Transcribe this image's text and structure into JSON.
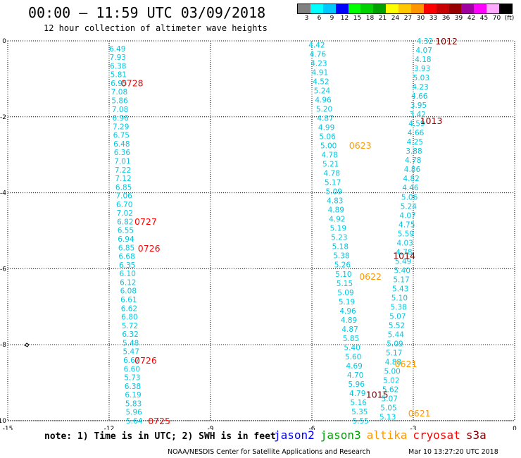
{
  "header": {
    "title": "00:00 – 11:59 UTC 03/09/2018",
    "subtitle": "12 hour collection of altimeter wave heights"
  },
  "colorbar": {
    "colors": [
      "#808080",
      "#00ffff",
      "#00c8ff",
      "#0000ff",
      "#00ff00",
      "#00d200",
      "#00a000",
      "#ffff00",
      "#ffc800",
      "#ff9600",
      "#ff0000",
      "#c80000",
      "#960000",
      "#a000a0",
      "#ff00ff",
      "#ffaaff",
      "#000000"
    ],
    "labels": [
      "3",
      "6",
      "9",
      "12",
      "15",
      "18",
      "21",
      "24",
      "27",
      "30",
      "33",
      "36",
      "39",
      "42",
      "45",
      "70",
      "(ft)"
    ]
  },
  "chart_data": {
    "type": "scatter",
    "xlim": [
      -15,
      0
    ],
    "ylim": [
      -10,
      0
    ],
    "x_ticks": [
      "-15",
      "-12",
      "-9",
      "-6",
      "-3",
      "0"
    ],
    "y_ticks": [
      "0",
      "-2",
      "-4",
      "-6",
      "-8",
      "-10"
    ],
    "grid": true,
    "point_color": "#00c8e0",
    "track1": {
      "x_start": -12.0,
      "x_end": -11.5,
      "y_start": -0.2,
      "y_end": -10.0,
      "values": [
        "6.49",
        "7.93",
        "6.38",
        "5.81",
        "6.95",
        "7.08",
        "5.86",
        "7.08",
        "6.96",
        "7.29",
        "6.75",
        "6.48",
        "6.36",
        "7.01",
        "7.22",
        "7.12",
        "6.85",
        "7.06",
        "6.70",
        "7.02",
        "6.82",
        "6.55",
        "6.94",
        "6.85",
        "6.68",
        "6.35",
        "6.10",
        "6.12",
        "6.08",
        "6.61",
        "6.62",
        "6.80",
        "5.72",
        "6.32",
        "5.48",
        "5.47",
        "6.67",
        "6.60",
        "5.73",
        "6.38",
        "6.19",
        "5.83",
        "5.96",
        "5.64"
      ]
    },
    "track2": {
      "x_start": -6.1,
      "x_end": -4.8,
      "y_start": -0.1,
      "y_end": -10.0,
      "values": [
        "4.42",
        "4.76",
        "4.23",
        "4.91",
        "4.52",
        "5.24",
        "4.96",
        "5.20",
        "4.87",
        "4.99",
        "5.06",
        "5.00",
        "4.78",
        "5.21",
        "4.78",
        "5.17",
        "5.09",
        "4.83",
        "4.89",
        "4.92",
        "5.19",
        "5.23",
        "5.18",
        "5.38",
        "5.26",
        "5.10",
        "5.15",
        "5.09",
        "5.19",
        "4.96",
        "4.89",
        "4.87",
        "5.85",
        "5.40",
        "5.60",
        "4.69",
        "4.70",
        "5.96",
        "4.79",
        "5.16",
        "5.35",
        "5.55"
      ]
    },
    "track3": {
      "x_start": -2.9,
      "x_end": -4.0,
      "y_start": 0.0,
      "y_end": -9.9,
      "values": [
        "4.32",
        "4.07",
        "4.18",
        "3.93",
        "5.03",
        "4.23",
        "4.66",
        "3.95",
        "3.42",
        "4.59",
        "4.66",
        "4.25",
        "3.88",
        "4.78",
        "4.86",
        "4.82",
        "4.46",
        "5.06",
        "5.24",
        "4.07",
        "4.75",
        "5.59",
        "4.03",
        "4.78",
        "5.49",
        "5.40",
        "5.17",
        "5.43",
        "5.10",
        "5.38",
        "5.07",
        "5.52",
        "5.44",
        "5.09",
        "5.17",
        "4.88",
        "5.00",
        "5.02",
        "5.62",
        "5.07",
        "5.05",
        "5.13"
      ]
    },
    "time_labels": [
      {
        "text": "0728",
        "x": -11.65,
        "y": -1.1,
        "color": "#ff0000"
      },
      {
        "text": "0727",
        "x": -11.25,
        "y": -4.75,
        "color": "#ff0000"
      },
      {
        "text": "0726",
        "x": -11.15,
        "y": -5.45,
        "color": "#ff0000"
      },
      {
        "text": "0726",
        "x": -11.25,
        "y": -8.4,
        "color": "#ff0000"
      },
      {
        "text": "0725",
        "x": -10.85,
        "y": -10.0,
        "color": "#ff0000"
      },
      {
        "text": "0623",
        "x": -4.9,
        "y": -2.75,
        "color": "#ff9900"
      },
      {
        "text": "0622",
        "x": -4.6,
        "y": -6.2,
        "color": "#ff9900"
      },
      {
        "text": "0621",
        "x": -3.55,
        "y": -8.5,
        "color": "#ff9900"
      },
      {
        "text": "0621",
        "x": -3.15,
        "y": -9.8,
        "color": "#ff9900"
      },
      {
        "text": "1012",
        "x": -2.35,
        "y": 0.0,
        "color": "#800000"
      },
      {
        "text": "1013",
        "x": -2.8,
        "y": -2.1,
        "color": "#800000"
      },
      {
        "text": "1014",
        "x": -3.6,
        "y": -5.65,
        "color": "#800000"
      },
      {
        "text": "1015",
        "x": -4.4,
        "y": -9.3,
        "color": "#800000"
      }
    ]
  },
  "footer": {
    "note": "note: 1) Time is in UTC; 2) SWH is in feet",
    "legend": [
      {
        "name": "jason2",
        "color": "#0000ff"
      },
      {
        "name": "jason3",
        "color": "#00a000"
      },
      {
        "name": "altika",
        "color": "#ff9900"
      },
      {
        "name": "cryosat",
        "color": "#ff0000"
      },
      {
        "name": "s3a",
        "color": "#800000"
      }
    ],
    "credit": "NOAA/NESDIS Center for Satellite Applications and Research",
    "timestamp": "Mar 10 13:27:20 UTC 2018"
  }
}
